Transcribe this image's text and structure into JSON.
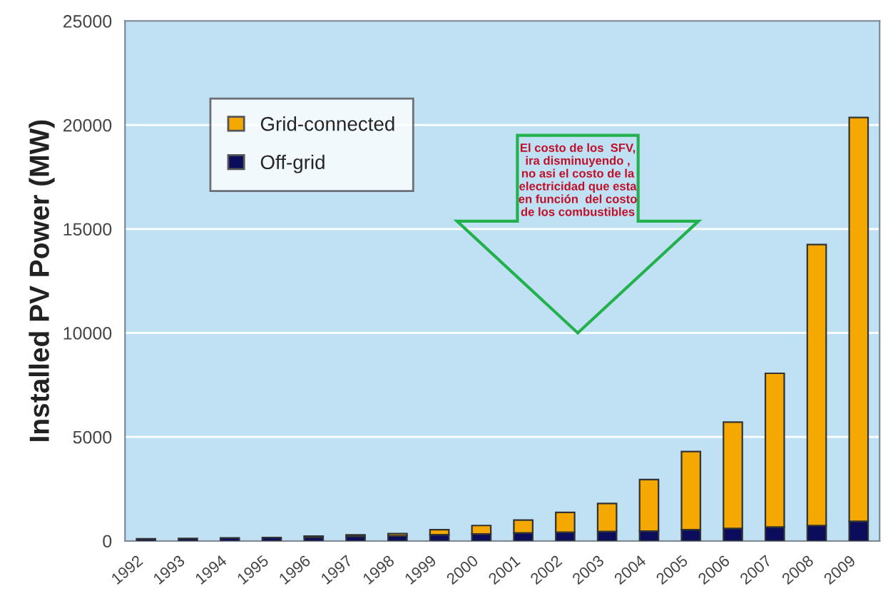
{
  "chart_data": {
    "type": "bar",
    "stacked": true,
    "ylabel": "Installed PV Power (MW)",
    "categories": [
      "1992",
      "1993",
      "1994",
      "1995",
      "1996",
      "1997",
      "1998",
      "1999",
      "2000",
      "2001",
      "2002",
      "2003",
      "2004",
      "2005",
      "2006",
      "2007",
      "2008",
      "2009"
    ],
    "series": [
      {
        "name": "Off-grid",
        "color": "#0c0c5c",
        "values": [
          100,
          120,
          140,
          160,
          180,
          220,
          250,
          300,
          330,
          380,
          420,
          450,
          470,
          540,
          600,
          670,
          740,
          940
        ]
      },
      {
        "name": "Grid-connected",
        "color": "#f5a800",
        "values": [
          null,
          null,
          null,
          null,
          50,
          70,
          100,
          240,
          410,
          620,
          950,
          1350,
          2480,
          3760,
          5110,
          7390,
          13510,
          19420
        ]
      }
    ],
    "ylim": [
      0,
      25000
    ],
    "yticks": [
      0,
      5000,
      10000,
      15000,
      20000,
      25000
    ],
    "grid": "y",
    "legend": "top left",
    "annotations": [
      "El costo de los  SFV, ira disminuyendo , no asi el costo de la electricidad que esta en función  del costo de los combustibles"
    ]
  }
}
